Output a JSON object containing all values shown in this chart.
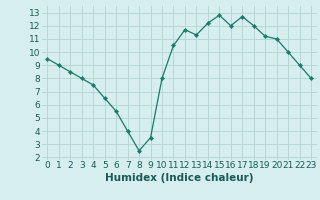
{
  "x": [
    0,
    1,
    2,
    3,
    4,
    5,
    6,
    7,
    8,
    9,
    10,
    11,
    12,
    13,
    14,
    15,
    16,
    17,
    18,
    19,
    20,
    21,
    22,
    23
  ],
  "y": [
    9.5,
    9.0,
    8.5,
    8.0,
    7.5,
    6.5,
    5.5,
    4.0,
    2.5,
    3.5,
    8.0,
    10.5,
    11.7,
    11.3,
    12.2,
    12.8,
    12.0,
    12.7,
    12.0,
    11.2,
    11.0,
    10.0,
    9.0,
    8.0
  ],
  "line_color": "#1a7a6e",
  "marker": "D",
  "marker_size": 2.2,
  "bg_color": "#d6eeee",
  "grid_color": "#b8d8d8",
  "xlabel": "Humidex (Indice chaleur)",
  "ylabel_ticks": [
    2,
    3,
    4,
    5,
    6,
    7,
    8,
    9,
    10,
    11,
    12,
    13
  ],
  "xlim": [
    -0.5,
    23.5
  ],
  "ylim": [
    1.8,
    13.5
  ],
  "xticks": [
    0,
    1,
    2,
    3,
    4,
    5,
    6,
    7,
    8,
    9,
    10,
    11,
    12,
    13,
    14,
    15,
    16,
    17,
    18,
    19,
    20,
    21,
    22,
    23
  ],
  "tick_fontsize": 6.5,
  "xlabel_fontsize": 7.5,
  "tick_color": "#1a5a5a"
}
